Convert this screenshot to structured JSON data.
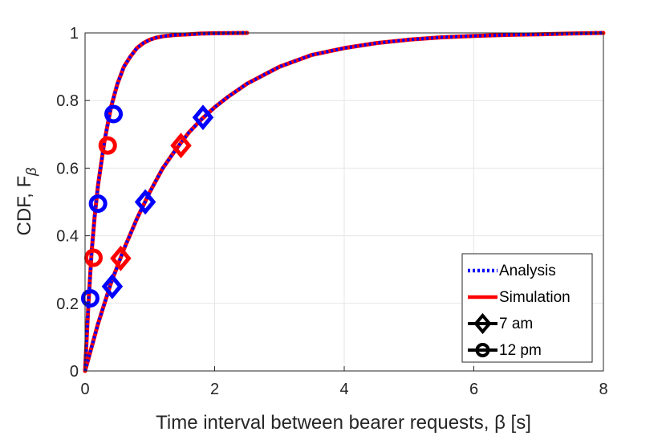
{
  "chart_data": {
    "type": "line",
    "xlabel": "Time interval between bearer requests, β [s]",
    "ylabel": "CDF, F",
    "ylabel_subscript": "β",
    "xlim": [
      0,
      8
    ],
    "ylim": [
      0,
      1
    ],
    "x_ticks": [
      0,
      2,
      4,
      6,
      8
    ],
    "y_ticks": [
      0,
      0.2,
      0.4,
      0.6,
      0.8,
      1
    ],
    "x_tick_labels": [
      "0",
      "2",
      "4",
      "6",
      "8"
    ],
    "y_tick_labels": [
      "0",
      "0.2",
      "0.4",
      "0.6",
      "0.8",
      "1"
    ],
    "grid": true,
    "legend_position": "bottom-right",
    "colors": {
      "analysis": "#0000ff",
      "simulation": "#ff0000",
      "marker_legend": "#000000"
    },
    "legend": [
      {
        "label": "Analysis",
        "style": "dotted",
        "color": "#0000ff"
      },
      {
        "label": "Simulation",
        "style": "solid",
        "color": "#ff0000"
      },
      {
        "label": "7 am",
        "style": "solid-diamond",
        "color": "#000000"
      },
      {
        "label": "12 pm",
        "style": "solid-circle",
        "color": "#000000"
      }
    ],
    "series": [
      {
        "name": "12 pm",
        "marker": "circle",
        "x": [
          0,
          0.05,
          0.1,
          0.15,
          0.2,
          0.3,
          0.4,
          0.5,
          0.6,
          0.7,
          0.8,
          0.9,
          1.0,
          1.1,
          1.2,
          1.4,
          1.6,
          1.8,
          2.0,
          2.2,
          2.5
        ],
        "y": [
          0,
          0.19,
          0.35,
          0.46,
          0.55,
          0.68,
          0.78,
          0.85,
          0.9,
          0.93,
          0.955,
          0.97,
          0.98,
          0.986,
          0.99,
          0.994,
          0.996,
          0.998,
          0.999,
          0.9995,
          1.0
        ],
        "markers_analysis": [
          [
            0.08,
            0.215
          ],
          [
            0.2,
            0.495
          ],
          [
            0.44,
            0.76
          ]
        ],
        "markers_simulation": [
          [
            0.13,
            0.335
          ],
          [
            0.35,
            0.667
          ]
        ]
      },
      {
        "name": "7 am",
        "marker": "diamond",
        "x": [
          0,
          0.2,
          0.4,
          0.6,
          0.8,
          1.0,
          1.2,
          1.4,
          1.6,
          1.8,
          2.0,
          2.2,
          2.5,
          3.0,
          3.5,
          4.0,
          4.5,
          5.0,
          5.5,
          6.0,
          6.5,
          7.0,
          7.5,
          8.0
        ],
        "y": [
          0,
          0.14,
          0.26,
          0.36,
          0.45,
          0.53,
          0.6,
          0.655,
          0.705,
          0.745,
          0.78,
          0.81,
          0.85,
          0.9,
          0.935,
          0.955,
          0.97,
          0.98,
          0.987,
          0.991,
          0.994,
          0.996,
          0.998,
          1.0
        ],
        "markers_analysis": [
          [
            0.42,
            0.25
          ],
          [
            0.93,
            0.5
          ],
          [
            1.82,
            0.75
          ]
        ],
        "markers_simulation": [
          [
            0.55,
            0.333
          ],
          [
            1.48,
            0.667
          ]
        ]
      }
    ]
  }
}
